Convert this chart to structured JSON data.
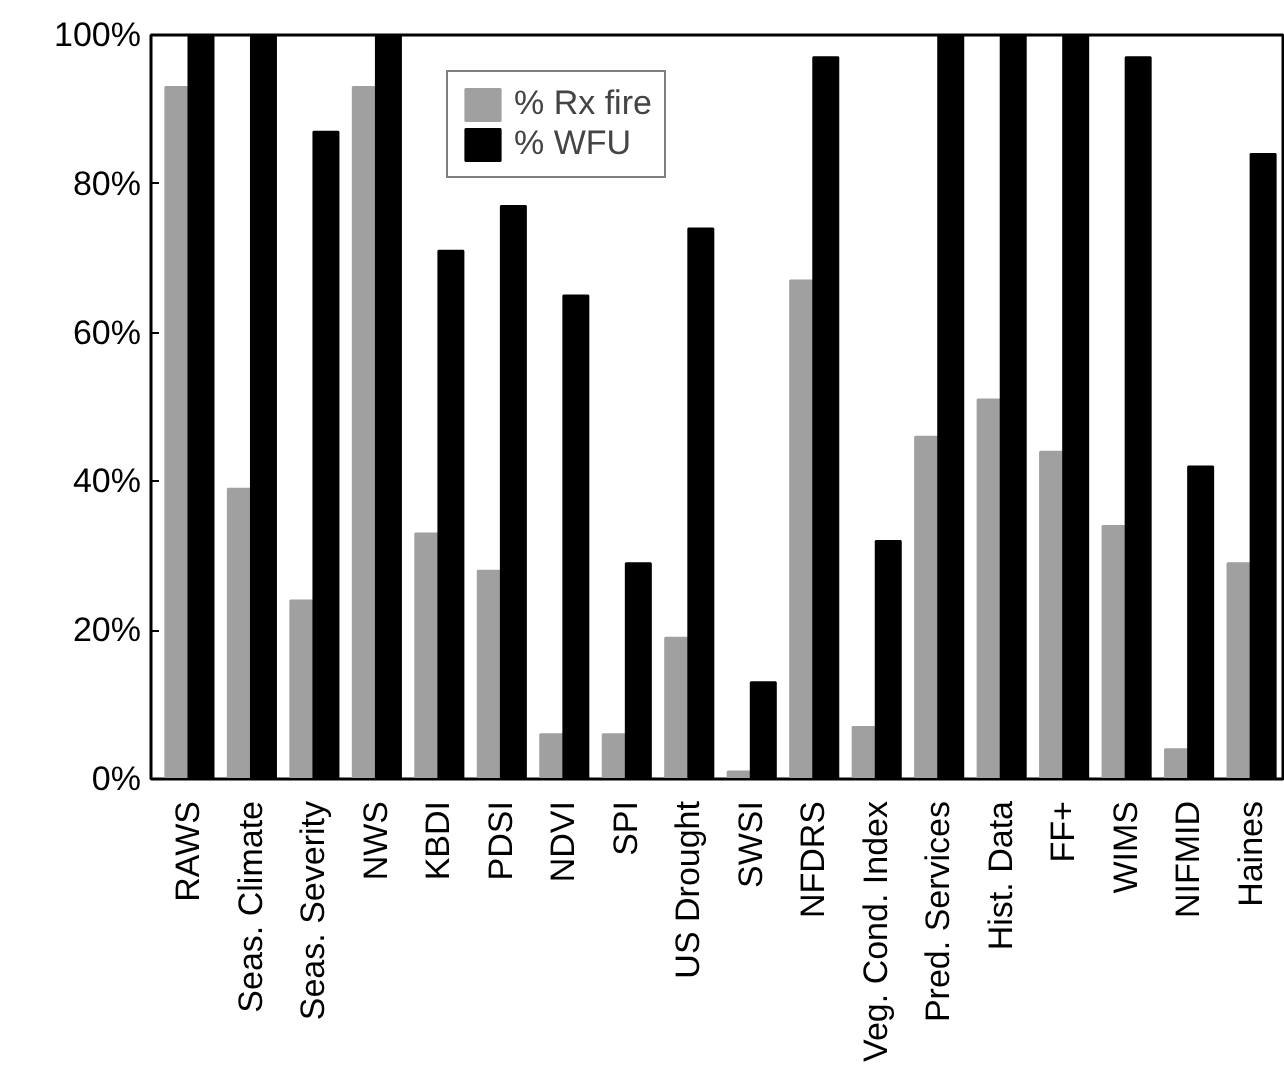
{
  "chart_data": {
    "type": "bar",
    "categories": [
      "RAWS",
      "Seas. Climate",
      "Seas. Severity",
      "NWS",
      "KBDI",
      "PDSI",
      "NDVI",
      "SPI",
      "US Drought",
      "SWSI",
      "NFDRS",
      "Veg. Cond. Index",
      "Pred. Services",
      "Hist. Data",
      "FF+",
      "WIMS",
      "NIFMID",
      "Haines"
    ],
    "series": [
      {
        "name": "% Rx fire",
        "color": "#a0a0a0",
        "values": [
          93,
          39,
          24,
          93,
          33,
          28,
          6,
          6,
          19,
          1,
          67,
          7,
          46,
          51,
          44,
          34,
          4,
          29
        ]
      },
      {
        "name": "% WFU",
        "color": "#000000",
        "values": [
          100,
          100,
          87,
          100,
          71,
          77,
          65,
          29,
          74,
          13,
          97,
          32,
          100,
          100,
          100,
          97,
          42,
          84
        ]
      }
    ],
    "ylim": [
      0,
      100
    ],
    "yticks": [
      {
        "value": 0,
        "label": "0%"
      },
      {
        "value": 20,
        "label": "20%"
      },
      {
        "value": 40,
        "label": "40%"
      },
      {
        "value": 60,
        "label": "60%"
      },
      {
        "value": 80,
        "label": "80%"
      },
      {
        "value": 100,
        "label": "100%"
      }
    ],
    "grid": false,
    "legend": "top"
  }
}
